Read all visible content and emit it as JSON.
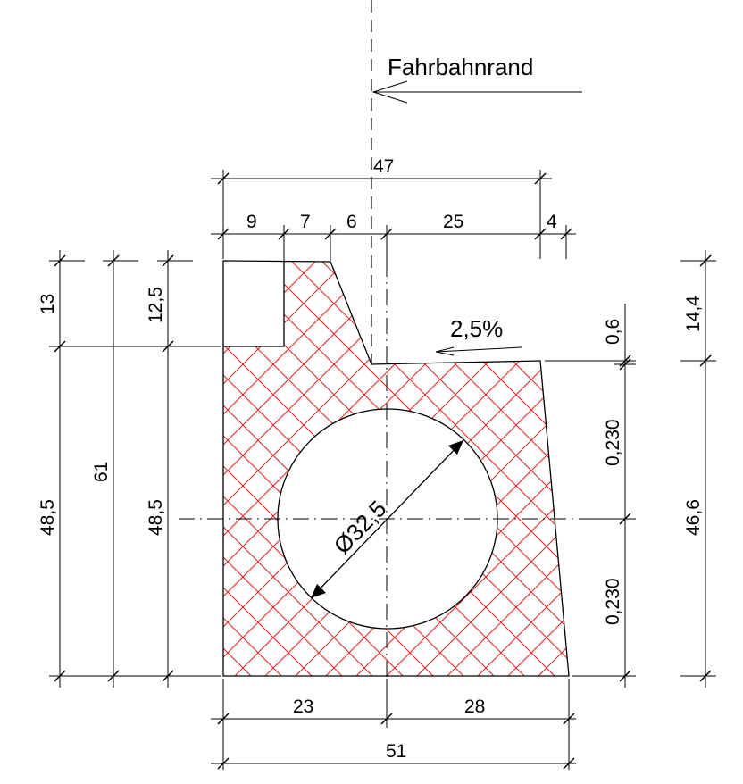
{
  "label": "Fahrbahnrand",
  "slope": "2,5%",
  "diameter": "Ø32,5",
  "dims": {
    "total_top": "47",
    "d9": "9",
    "d7": "7",
    "d6": "6",
    "d25": "25",
    "d4": "4",
    "bot_left": "23",
    "bot_right": "28",
    "total_bottom": "51",
    "l13": "13",
    "l48_outer": "48,5",
    "l61": "61",
    "l12_5": "12,5",
    "l48_inner": "48,5",
    "r0_6": "0,6",
    "r0_230_top": "0,230",
    "r0_230_bottom": "0,230",
    "r14_4": "14,4",
    "r46_6": "46,6"
  },
  "colors": {
    "hatch": "#dd2020",
    "lines": "#000000",
    "background": "#ffffff"
  }
}
